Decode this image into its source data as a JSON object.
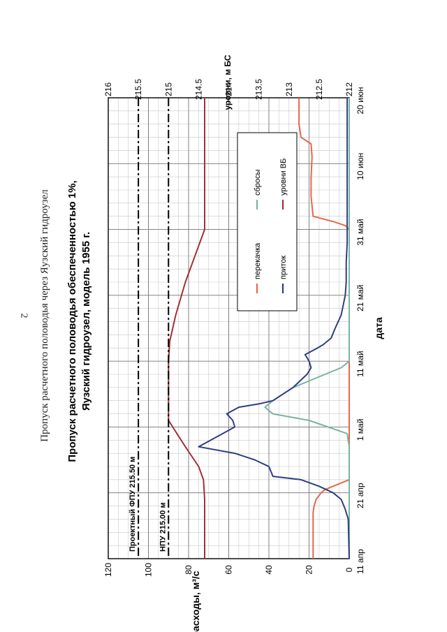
{
  "page": {
    "number": "2",
    "header": "Пропуск расчетного половодья через Яузский гидроузел"
  },
  "chart_data": {
    "type": "line",
    "title_line1": "Пропуск расчетного половодья обеспеченностью 1%,",
    "title_line2": "Яузский гидроузел, модель 1955 г.",
    "xlabel": "дата",
    "ylabel_left": "расходы, м³/с",
    "ylabel_right": "уровни, м БС",
    "x_ticks": [
      "11 апр",
      "21 апр",
      "1 май",
      "11 май",
      "21 май",
      "31 май",
      "10 июн",
      "20 июн"
    ],
    "x_range": [
      0,
      70
    ],
    "y_left_range": [
      0,
      120
    ],
    "y_left_ticks": [
      "0",
      "20",
      "40",
      "60",
      "80",
      "100",
      "120"
    ],
    "y_right_range": [
      212,
      216
    ],
    "y_right_ticks": [
      "212",
      "212.5",
      "213",
      "213.5",
      "214",
      "214.5",
      "215",
      "215.5",
      "216"
    ],
    "grid": true,
    "legend_position": "top-right",
    "annotations": [
      {
        "label": "Проектный ФПУ 215.50 м",
        "level": 215.5
      },
      {
        "label": "НПУ 215.00 м",
        "level": 215.0
      }
    ],
    "series": [
      {
        "name": "перекачка",
        "axis": "left",
        "color": "#e8664a",
        "x": [
          0,
          7,
          8,
          9,
          10,
          10.5,
          11,
          11.5,
          12,
          50,
          50.6,
          51.2,
          52,
          55,
          58,
          61,
          63,
          64,
          66,
          70
        ],
        "y": [
          18,
          18,
          17.5,
          16.5,
          14,
          12,
          8,
          4,
          0,
          0,
          2,
          8,
          18,
          19,
          19,
          18.5,
          19,
          24,
          25,
          25
        ]
      },
      {
        "name": "сбросы",
        "axis": "left",
        "color": "#78b4a0",
        "x": [
          0,
          17,
          19,
          21,
          22,
          22.5,
          23,
          24,
          26,
          28,
          29,
          30,
          70
        ],
        "y": [
          0,
          0,
          1,
          20,
          38,
          40,
          42,
          38,
          28,
          12,
          4,
          0,
          0
        ]
      },
      {
        "name": "приток",
        "axis": "left",
        "color": "#2e3f80",
        "x": [
          0,
          6,
          7.5,
          9,
          10,
          11,
          12,
          12.5,
          14,
          15,
          16,
          17,
          19,
          20,
          21,
          22,
          23,
          23.5,
          24,
          26,
          28,
          29,
          30,
          31,
          31.8,
          32.5,
          33.5,
          35,
          37,
          40,
          42,
          45,
          48,
          50,
          55,
          58,
          63,
          66,
          70
        ],
        "y": [
          0,
          0.5,
          2,
          4,
          8,
          15,
          24,
          38,
          40,
          47,
          57,
          75,
          63,
          57,
          58,
          61,
          55,
          45,
          38,
          28,
          21,
          19,
          20,
          22,
          17,
          13,
          9,
          7,
          4,
          2,
          1.5,
          1.5,
          1,
          1,
          1,
          1,
          1,
          1,
          1
        ]
      },
      {
        "name": "уровни ВБ",
        "axis": "right",
        "color": "#a0303a",
        "x": [
          0,
          9,
          12,
          14,
          17,
          19,
          20,
          21,
          23,
          26,
          30,
          33,
          37,
          42,
          46,
          50,
          55,
          60,
          65,
          70
        ],
        "y": [
          214.4,
          214.4,
          214.42,
          214.5,
          214.72,
          214.86,
          214.93,
          215,
          215,
          215,
          215,
          214.98,
          214.88,
          214.72,
          214.56,
          214.4,
          214.4,
          214.4,
          214.4,
          214.4
        ]
      }
    ]
  }
}
